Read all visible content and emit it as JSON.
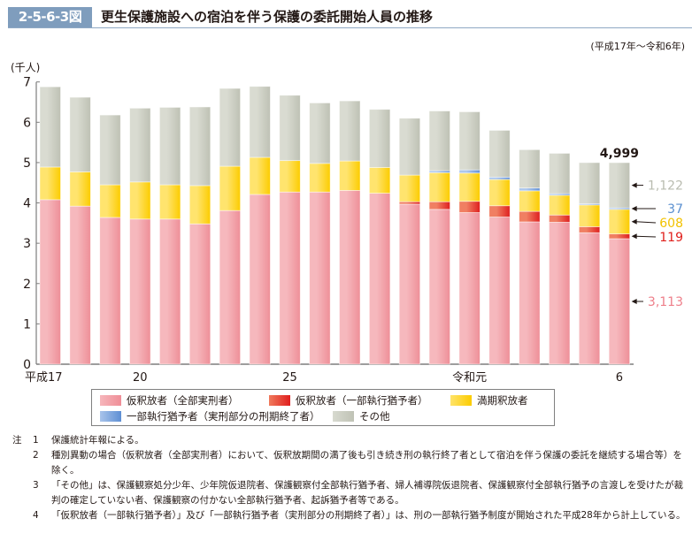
{
  "header": {
    "figure_number": "2-5-6-3図",
    "title": "更生保護施設への宿泊を伴う保護の委託開始人員の推移",
    "period": "(平成17年～令和6年)"
  },
  "chart_data": {
    "type": "bar",
    "stacked": true,
    "title": "更生保護施設への宿泊を伴う保護の委託開始人員の推移",
    "ylabel": "(千人)",
    "xlabel": "",
    "ylim": [
      0,
      7
    ],
    "yticks": [
      0,
      1,
      2,
      3,
      4,
      5,
      6,
      7
    ],
    "grid": false,
    "legend_position": "bottom",
    "categories": [
      "平成17",
      "18",
      "19",
      "20",
      "21",
      "22",
      "23",
      "24",
      "25",
      "26",
      "27",
      "28",
      "29",
      "30",
      "令和元",
      "2",
      "3",
      "4",
      "5",
      "6"
    ],
    "xtick_labels": [
      {
        "index": 0,
        "label": "平成17"
      },
      {
        "index": 3,
        "label": "20"
      },
      {
        "index": 8,
        "label": "25"
      },
      {
        "index": 14,
        "label": "令和元"
      },
      {
        "index": 19,
        "label": "6"
      }
    ],
    "series": [
      {
        "name": "仮釈放者（全部実刑者）",
        "color": "#f2a3aa",
        "values": [
          4.08,
          3.92,
          3.64,
          3.6,
          3.6,
          3.48,
          3.81,
          4.21,
          4.27,
          4.27,
          4.31,
          4.24,
          3.97,
          3.84,
          3.76,
          3.65,
          3.53,
          3.52,
          3.26,
          3.113
        ]
      },
      {
        "name": "仮釈放者（一部執行猶予者）",
        "color": "#e8452e",
        "values": [
          0,
          0,
          0,
          0,
          0,
          0,
          0,
          0,
          0,
          0,
          0,
          0,
          0.06,
          0.19,
          0.28,
          0.28,
          0.26,
          0.18,
          0.15,
          0.119
        ]
      },
      {
        "name": "満期釈放者",
        "color": "#fdd835",
        "values": [
          0.81,
          0.85,
          0.81,
          0.92,
          0.85,
          0.95,
          1.1,
          0.92,
          0.78,
          0.71,
          0.73,
          0.64,
          0.66,
          0.72,
          0.7,
          0.65,
          0.51,
          0.49,
          0.54,
          0.608
        ]
      },
      {
        "name": "一部執行猶予者（実刑部分の刑期終了者）",
        "color": "#7ea6dc",
        "values": [
          0,
          0,
          0,
          0,
          0,
          0,
          0,
          0,
          0,
          0,
          0,
          0,
          0,
          0.05,
          0.08,
          0.06,
          0.07,
          0.04,
          0.03,
          0.037
        ]
      },
      {
        "name": "その他",
        "color": "#cbcdc2",
        "values": [
          1.99,
          1.85,
          1.73,
          1.83,
          1.92,
          1.95,
          1.93,
          1.76,
          1.62,
          1.5,
          1.49,
          1.44,
          1.41,
          1.48,
          1.44,
          1.16,
          0.95,
          1.0,
          1.02,
          1.122
        ]
      }
    ],
    "annotations": {
      "total_label": "4,999",
      "last_bar_labels": [
        {
          "series": "その他",
          "text": "1,122",
          "color": "#b9bcb0"
        },
        {
          "series": "一部執行猶予者（実刑部分の刑期終了者）",
          "text": "37",
          "color": "#5a8fd0"
        },
        {
          "series": "満期釈放者",
          "text": "608",
          "color": "#f2c200"
        },
        {
          "series": "仮釈放者（一部執行猶予者）",
          "text": "119",
          "color": "#e0201c"
        },
        {
          "series": "仮釈放者（全部実刑者）",
          "text": "3,113",
          "color": "#ee7f8a"
        }
      ]
    }
  },
  "legend": [
    {
      "label": "仮釈放者（全部実刑者）",
      "color": "#f2a3aa"
    },
    {
      "label": "仮釈放者（一部執行猶予者）",
      "color": "#e8452e"
    },
    {
      "label": "満期釈放者",
      "color": "#fdd835"
    },
    {
      "label": "一部執行猶予者（実刑部分の刑期終了者）",
      "color": "#7ea6dc"
    },
    {
      "label": "その他",
      "color": "#cbcdc2"
    }
  ],
  "notes": {
    "head": "注",
    "items": [
      {
        "num": "1",
        "text": "保護統計年報による。"
      },
      {
        "num": "2",
        "text": "種別異動の場合（仮釈放者（全部実刑者）において、仮釈放期間の満了後も引き続き刑の執行終了者として宿泊を伴う保護の委託を継続する場合等）を除く。"
      },
      {
        "num": "3",
        "text": "「その他」は、保護観察処分少年、少年院仮退院者、保護観察付全部執行猶予者、婦人補導院仮退院者、保護観察付全部執行猶予の言渡しを受けたが裁判の確定していない者、保護観察の付かない全部執行猶予者、起訴猶予者等である。"
      },
      {
        "num": "4",
        "text": "「仮釈放者（一部執行猶予者）」及び「一部執行猶予者（実刑部分の刑期終了者）」は、刑の一部執行猶予制度が開始された平成28年から計上している。"
      }
    ]
  }
}
